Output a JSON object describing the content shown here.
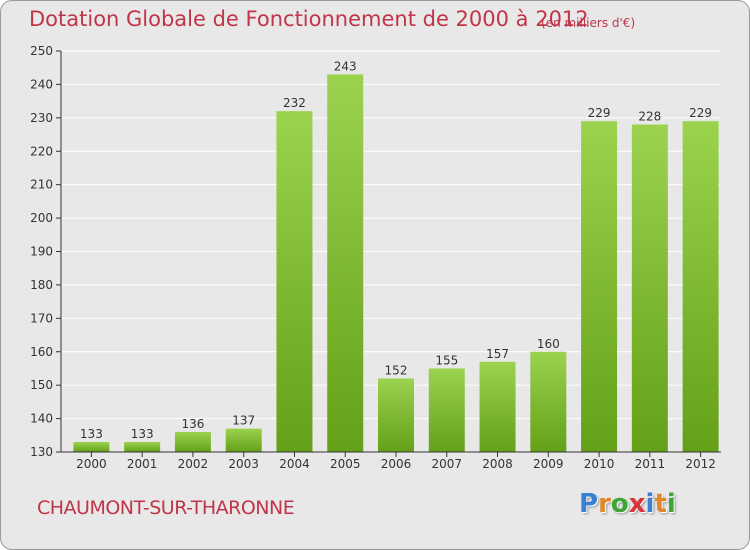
{
  "header": {
    "title": "Dotation Globale de Fonctionnement de 2000 à 2012",
    "subtitle": "(en milliers d'€)"
  },
  "footer": {
    "commune": "CHAUMONT-SUR-THARONNE",
    "logo_letters": [
      "P",
      "r",
      "o",
      "x",
      "i",
      "t",
      "i"
    ],
    "logo_colors": [
      "#3a7fd0",
      "#e0872a",
      "#3fa535",
      "#d8343a",
      "#3a7fd0",
      "#e0872a",
      "#3fa535"
    ]
  },
  "colors": {
    "bar_light": "#9bd34f",
    "bar_dark": "#64a018",
    "title": "#c0354a",
    "axis": "#333333",
    "grid": "#ffffff"
  },
  "chart_data": {
    "type": "bar",
    "title": "Dotation Globale de Fonctionnement de 2000 à 2012",
    "subtitle": "(en milliers d'€)",
    "categories": [
      "2000",
      "2001",
      "2002",
      "2003",
      "2004",
      "2005",
      "2006",
      "2007",
      "2008",
      "2009",
      "2010",
      "2011",
      "2012"
    ],
    "values": [
      133,
      133,
      136,
      137,
      232,
      243,
      152,
      155,
      157,
      160,
      229,
      228,
      229
    ],
    "ylim": [
      130,
      250
    ],
    "yticks": [
      130,
      140,
      150,
      160,
      170,
      180,
      190,
      200,
      210,
      220,
      230,
      240,
      250
    ],
    "xlabel": "",
    "ylabel": "",
    "grid": true
  }
}
